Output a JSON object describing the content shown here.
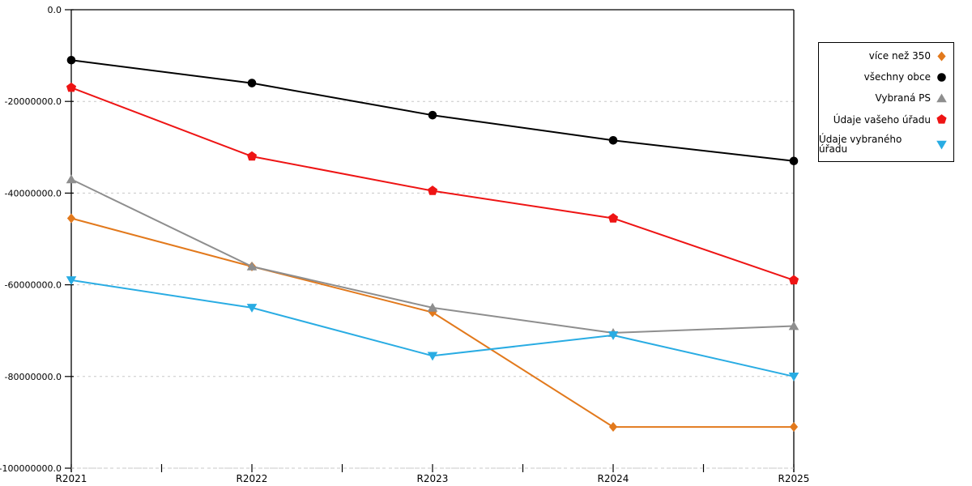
{
  "chart_data": {
    "type": "line",
    "title": "",
    "xlabel": "",
    "ylabel": "",
    "categories": [
      "R2021",
      "R2022",
      "R2023",
      "R2024",
      "R2025"
    ],
    "series": [
      {
        "name": "více než 350",
        "color": "#E2791C",
        "marker": "diamond",
        "values": [
          -45500000,
          -56000000,
          -66000000,
          -91000000,
          -91000000
        ]
      },
      {
        "name": "všechny obce",
        "color": "#000000",
        "marker": "circle",
        "values": [
          -11000000,
          -16000000,
          -23000000,
          -28500000,
          -33000000
        ]
      },
      {
        "name": "Vybraná PS",
        "color": "#8E8E8E",
        "marker": "triangle-up",
        "values": [
          -37000000,
          -56000000,
          -65000000,
          -70500000,
          -69000000
        ]
      },
      {
        "name": "Údaje vašeho úřadu",
        "color": "#EE1414",
        "marker": "pentagon",
        "values": [
          -17000000,
          -32000000,
          -39500000,
          -45500000,
          -59000000
        ]
      },
      {
        "name": "Údaje vybraného úřadu",
        "color": "#29ACE3",
        "marker": "triangle-down",
        "values": [
          -59000000,
          -65000000,
          -75500000,
          -71000000,
          -80000000
        ]
      }
    ],
    "ylim": [
      -100000000,
      0
    ],
    "y_ticks": [
      0,
      -20000000,
      -40000000,
      -60000000,
      -80000000,
      -100000000
    ],
    "y_tick_labels": [
      "0.0",
      "-20000000.0",
      "-40000000.0",
      "-60000000.0",
      "-80000000.0",
      "-100000000.0"
    ],
    "grid": true,
    "legend_position": "outside-upper-right"
  },
  "colors": {
    "background": "#FFFFFF",
    "axis": "#000000",
    "gridline": "#C8C8C8",
    "text": "#000000"
  }
}
